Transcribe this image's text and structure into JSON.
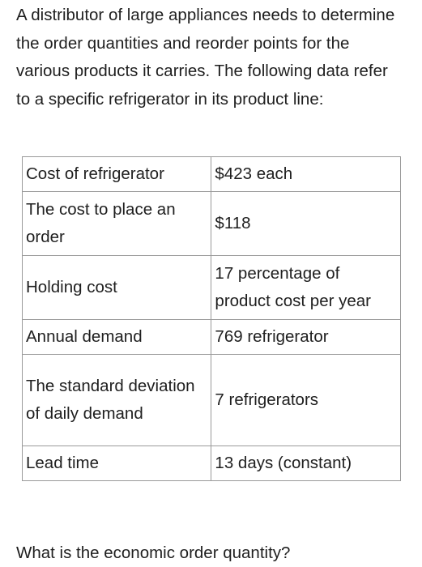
{
  "intro": "A distributor of large appliances needs to determine the order quantities and reorder points for the various products it carries. The following data refer to a specific refrigerator in its product line:",
  "table": {
    "rows": [
      {
        "label": "Cost of refrigerator",
        "value": "$423 each"
      },
      {
        "label": "The cost to place an order",
        "value": "$118"
      },
      {
        "label": "Holding cost",
        "value": "17 percentage of product cost per year"
      },
      {
        "label": "Annual demand",
        "value": "769 refrigerator"
      },
      {
        "label": "The standard deviation of daily demand",
        "value": "7 refrigerators"
      },
      {
        "label": "Lead time",
        "value": "13 days (constant)"
      }
    ]
  },
  "question": "What is the economic order quantity?"
}
